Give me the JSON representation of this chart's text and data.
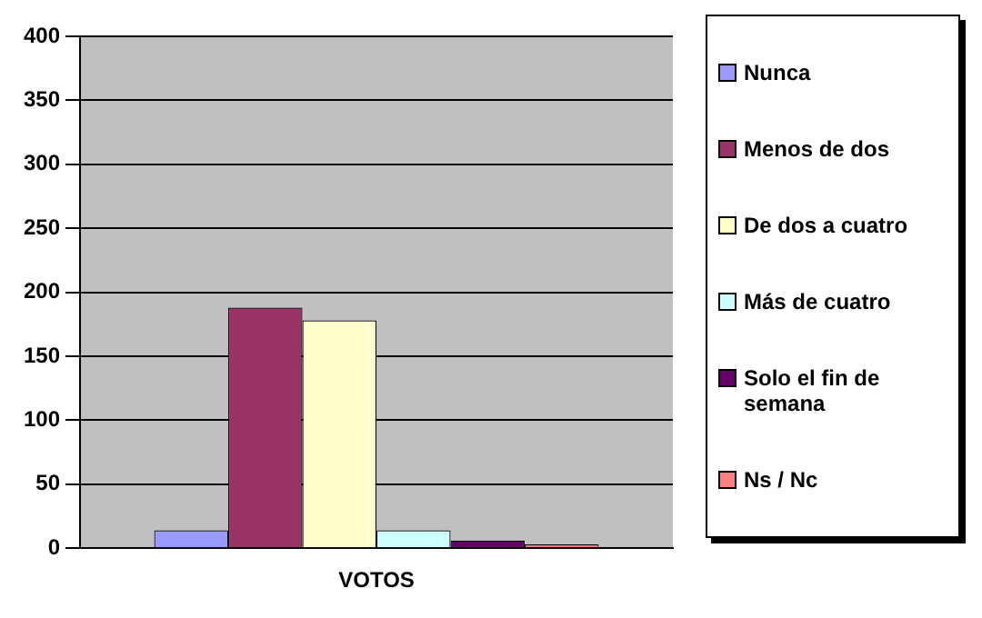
{
  "chart_data": {
    "type": "bar",
    "categories": [
      "VOTOS"
    ],
    "series": [
      {
        "name": "Nunca",
        "color": "#9999ff",
        "values": [
          14
        ]
      },
      {
        "name": "Menos de dos",
        "color": "#993366",
        "values": [
          188
        ]
      },
      {
        "name": "De dos a cuatro",
        "color": "#ffffcc",
        "values": [
          178
        ]
      },
      {
        "name": "Más de cuatro",
        "color": "#ccffff",
        "values": [
          14
        ]
      },
      {
        "name": "Solo el fin de semana",
        "color": "#660066",
        "values": [
          6
        ]
      },
      {
        "name": "Ns / Nc",
        "color": "#ff8080",
        "values": [
          3
        ]
      }
    ],
    "ylim": [
      0,
      400
    ],
    "yticks": [
      0,
      50,
      100,
      150,
      200,
      250,
      300,
      350,
      400
    ],
    "grid": "y",
    "legend": "right"
  }
}
